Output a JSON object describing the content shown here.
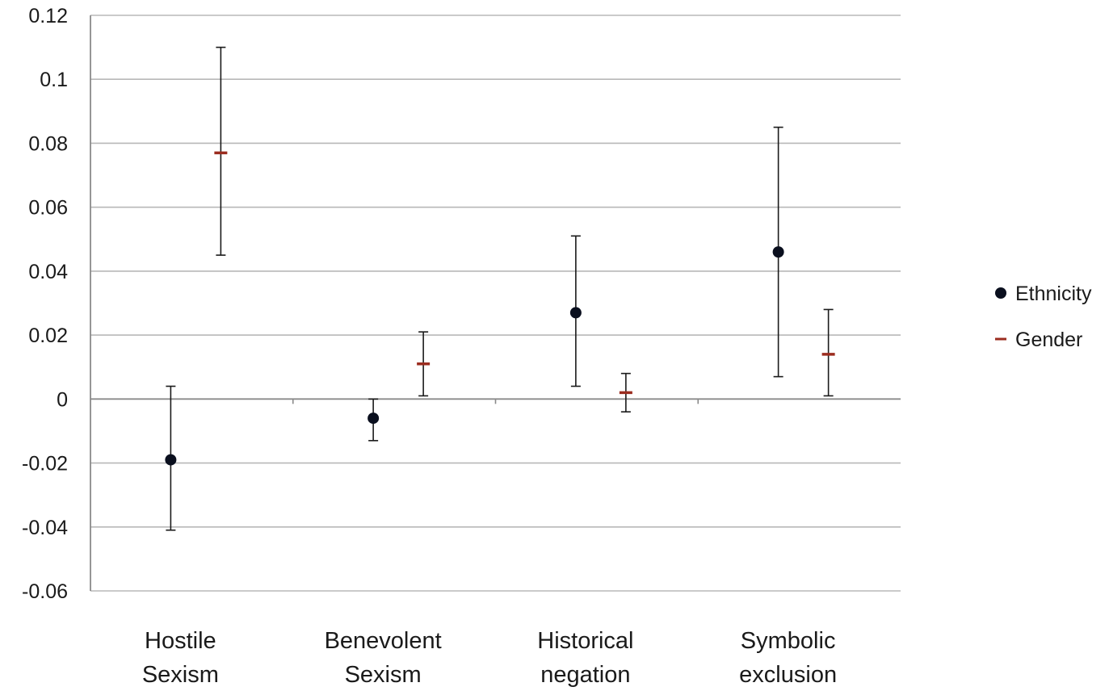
{
  "chart_data": {
    "type": "scatter",
    "title": "",
    "xlabel": "",
    "ylabel": "",
    "ylim": [
      -0.06,
      0.12
    ],
    "y_ticks": [
      "0.12",
      "0.1",
      "0.08",
      "0.06",
      "0.04",
      "0.02",
      "0",
      "-0.02",
      "-0.04",
      "-0.06"
    ],
    "y_tick_values": [
      0.12,
      0.1,
      0.08,
      0.06,
      0.04,
      0.02,
      0,
      -0.02,
      -0.04,
      -0.06
    ],
    "grid": true,
    "legend_position": "right",
    "categories": [
      [
        "Hostile",
        "Sexism"
      ],
      [
        "Benevolent",
        "Sexism"
      ],
      [
        "Historical",
        "negation"
      ],
      [
        "Symbolic",
        "exclusion"
      ]
    ],
    "series": [
      {
        "name": "Ethnicity",
        "marker": "circle",
        "color": "#0a0f1e",
        "values": [
          -0.019,
          -0.006,
          0.027,
          0.046
        ],
        "lower": [
          -0.041,
          -0.013,
          0.004,
          0.007
        ],
        "upper": [
          0.004,
          0.0,
          0.051,
          0.085
        ]
      },
      {
        "name": "Gender",
        "marker": "dash",
        "color": "#9b2c1f",
        "values": [
          0.077,
          0.011,
          0.002,
          0.014
        ],
        "lower": [
          0.045,
          0.001,
          -0.004,
          0.001
        ],
        "upper": [
          0.11,
          0.021,
          0.008,
          0.028
        ]
      }
    ]
  }
}
